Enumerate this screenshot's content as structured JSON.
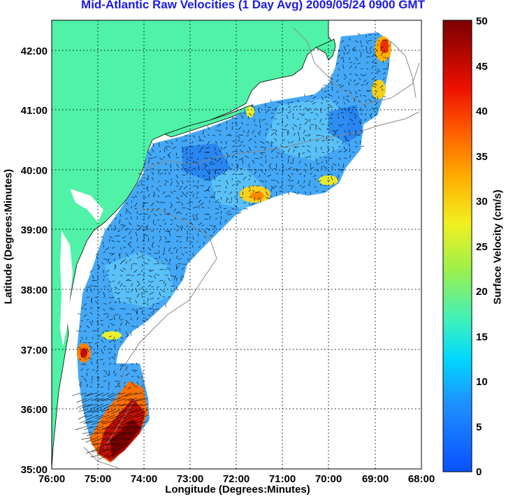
{
  "title": "Mid-Atlantic Raw Velocities (1 Day Avg) 2009/05/24 0900 GMT",
  "x_axis": {
    "label": "Longitude (Degrees:Minutes)",
    "ticks": [
      "76:00",
      "75:00",
      "74:00",
      "73:00",
      "72:00",
      "71:00",
      "70:00",
      "69:00",
      "68:00"
    ]
  },
  "y_axis": {
    "label": "Latitude (Degrees:Minutes)",
    "ticks": [
      "42:00",
      "41:00",
      "40:00",
      "39:00",
      "38:00",
      "37:00",
      "36:00",
      "35:00"
    ]
  },
  "colorbar": {
    "label": "Surface Velocity (cm/s)",
    "ticks": [
      "50",
      "45",
      "40",
      "35",
      "30",
      "25",
      "20",
      "15",
      "10",
      "5",
      "0"
    ],
    "min": 0,
    "max": 50,
    "colormap": "jet"
  },
  "colors": {
    "land": "#4ff2a6",
    "ocean_no_data": "#ffffff",
    "grid": "#000000",
    "bathymetry": "#8a8a8a"
  }
}
